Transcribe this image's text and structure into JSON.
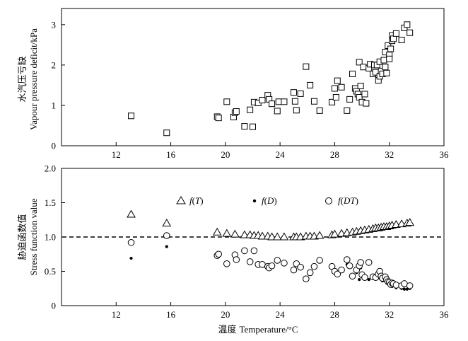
{
  "chart_data": [
    {
      "type": "scatter",
      "ylabel_cn": "水汽压亏缺",
      "ylabel_en": "Vapour pressure deficit/kPa",
      "xlim": [
        8,
        36
      ],
      "ylim": [
        0,
        3.4
      ],
      "xticks": [
        "12",
        "16",
        "20",
        "24",
        "28",
        "32",
        "36"
      ],
      "yticks": [
        "0",
        "1",
        "2",
        "3"
      ],
      "series": [
        {
          "marker": "square",
          "x": [
            13.1,
            15.7,
            19.4,
            19.5,
            20.1,
            20.6,
            20.7,
            20.8,
            21.4,
            21.8,
            22.0,
            22.1,
            22.4,
            22.7,
            23.1,
            23.2,
            23.4,
            23.8,
            23.9,
            24.3,
            25.0,
            25.1,
            25.2,
            25.5,
            25.9,
            26.2,
            26.5,
            26.9,
            27.8,
            28.0,
            28.1,
            28.2,
            28.5,
            28.9,
            29.1,
            29.3,
            29.5,
            29.6,
            29.7,
            29.8,
            29.8,
            29.9,
            30.0,
            30.1,
            30.2,
            30.3,
            30.5,
            30.6,
            30.8,
            30.9,
            31.0,
            31.1,
            31.2,
            31.3,
            31.3,
            31.4,
            31.5,
            31.6,
            31.7,
            31.7,
            31.8,
            31.9,
            32.0,
            32.0,
            32.1,
            32.2,
            32.2,
            32.3,
            32.5,
            32.9,
            33.1,
            33.3,
            33.5
          ],
          "y": [
            0.74,
            0.32,
            0.72,
            0.69,
            1.09,
            0.71,
            0.82,
            0.85,
            0.48,
            0.89,
            0.47,
            1.08,
            1.06,
            1.13,
            1.25,
            1.15,
            1.04,
            0.86,
            1.09,
            1.09,
            1.32,
            1.1,
            0.88,
            1.29,
            1.96,
            1.5,
            1.1,
            0.87,
            1.08,
            1.42,
            1.2,
            1.61,
            1.45,
            0.87,
            1.15,
            1.78,
            1.42,
            1.35,
            1.28,
            1.2,
            2.07,
            1.48,
            1.08,
            1.95,
            1.28,
            1.05,
            1.92,
            2.02,
            1.78,
            2.0,
            1.82,
            2.0,
            1.62,
            1.72,
            2.08,
            1.85,
            1.78,
            2.12,
            1.95,
            2.32,
            1.8,
            2.48,
            2.25,
            2.15,
            2.4,
            2.73,
            2.6,
            2.65,
            2.78,
            2.62,
            2.92,
            3.0,
            2.8
          ]
        }
      ]
    },
    {
      "type": "scatter",
      "ylabel_cn": "胁迫函数值",
      "ylabel_en": "Stress function value",
      "xlabel_cn": "温度",
      "xlabel_en": "Temperature/°C",
      "xlim": [
        8,
        36
      ],
      "ylim": [
        0,
        2.0
      ],
      "xticks": [
        "12",
        "16",
        "20",
        "24",
        "28",
        "32",
        "36"
      ],
      "yticks": [
        "0",
        "0.5",
        "1.0",
        "1.5",
        "2.0"
      ],
      "reference_y": 1.0,
      "legend_placement": "top",
      "legend": [
        {
          "marker": "triangle",
          "func": "f",
          "arg": "T"
        },
        {
          "marker": "dot",
          "func": "f",
          "arg": "D"
        },
        {
          "marker": "circle",
          "func": "f",
          "arg": "DT"
        }
      ],
      "series": [
        {
          "marker": "triangle",
          "x": [
            13.1,
            15.7,
            19.4,
            20.1,
            20.7,
            21.4,
            21.8,
            22.1,
            22.4,
            22.7,
            23.1,
            23.4,
            23.8,
            24.3,
            25.0,
            25.2,
            25.5,
            25.9,
            26.2,
            26.5,
            26.9,
            27.8,
            28.0,
            28.5,
            28.9,
            29.3,
            29.6,
            29.9,
            30.2,
            30.5,
            30.8,
            31.0,
            31.2,
            31.4,
            31.6,
            31.8,
            32.0,
            32.2,
            32.5,
            32.9,
            33.3,
            33.5
          ],
          "y": [
            1.33,
            1.2,
            1.07,
            1.05,
            1.04,
            1.03,
            1.03,
            1.02,
            1.02,
            1.01,
            1.01,
            1.0,
            1.0,
            1.0,
            1.0,
            1.0,
            1.0,
            1.01,
            1.01,
            1.01,
            1.02,
            1.03,
            1.04,
            1.05,
            1.06,
            1.07,
            1.08,
            1.09,
            1.1,
            1.11,
            1.12,
            1.13,
            1.13,
            1.14,
            1.15,
            1.15,
            1.16,
            1.17,
            1.18,
            1.19,
            1.2,
            1.21
          ]
        },
        {
          "marker": "dot",
          "x": [
            13.1,
            15.7,
            19.4,
            20.1,
            20.7,
            21.4,
            21.8,
            22.1,
            22.4,
            22.7,
            23.1,
            23.2,
            23.4,
            23.8,
            24.3,
            25.0,
            25.2,
            25.5,
            25.9,
            26.2,
            26.5,
            26.9,
            27.8,
            28.0,
            28.2,
            28.5,
            28.9,
            29.3,
            29.6,
            29.8,
            29.9,
            30.0,
            30.2,
            30.5,
            30.8,
            31.0,
            31.2,
            31.3,
            31.5,
            31.7,
            31.9,
            32.0,
            32.2,
            32.5,
            32.9,
            33.1,
            33.3,
            33.5
          ],
          "y": [
            0.69,
            0.86,
            0.73,
            0.61,
            0.67,
            0.8,
            0.64,
            0.8,
            0.6,
            0.6,
            0.57,
            0.55,
            0.58,
            0.66,
            0.62,
            0.52,
            0.61,
            0.55,
            0.38,
            0.48,
            0.57,
            0.66,
            0.57,
            0.5,
            0.46,
            0.52,
            0.6,
            0.4,
            0.48,
            0.38,
            0.55,
            0.43,
            0.4,
            0.38,
            0.4,
            0.4,
            0.44,
            0.4,
            0.36,
            0.4,
            0.33,
            0.3,
            0.28,
            0.26,
            0.25,
            0.24,
            0.24,
            0.25
          ]
        },
        {
          "marker": "circle",
          "x": [
            13.1,
            15.7,
            19.4,
            19.5,
            20.1,
            20.7,
            20.8,
            21.4,
            21.8,
            22.1,
            22.4,
            22.7,
            23.1,
            23.2,
            23.4,
            23.8,
            24.3,
            25.0,
            25.2,
            25.5,
            25.9,
            26.2,
            26.5,
            26.9,
            27.8,
            28.0,
            28.2,
            28.5,
            28.9,
            29.1,
            29.3,
            29.6,
            29.8,
            29.9,
            30.0,
            30.2,
            30.5,
            30.8,
            31.0,
            31.2,
            31.3,
            31.4,
            31.5,
            31.7,
            31.8,
            31.9,
            32.0,
            32.1,
            32.2,
            32.3,
            32.5,
            32.9,
            33.1,
            33.5
          ],
          "y": [
            0.92,
            1.02,
            0.73,
            0.75,
            0.61,
            0.74,
            0.67,
            0.8,
            0.64,
            0.8,
            0.6,
            0.6,
            0.57,
            0.55,
            0.58,
            0.66,
            0.62,
            0.52,
            0.61,
            0.56,
            0.39,
            0.48,
            0.57,
            0.66,
            0.57,
            0.5,
            0.46,
            0.52,
            0.67,
            0.58,
            0.43,
            0.52,
            0.58,
            0.63,
            0.45,
            0.41,
            0.63,
            0.42,
            0.41,
            0.46,
            0.5,
            0.43,
            0.4,
            0.42,
            0.38,
            0.35,
            0.34,
            0.31,
            0.33,
            0.32,
            0.3,
            0.29,
            0.32,
            0.29
          ]
        }
      ]
    }
  ]
}
